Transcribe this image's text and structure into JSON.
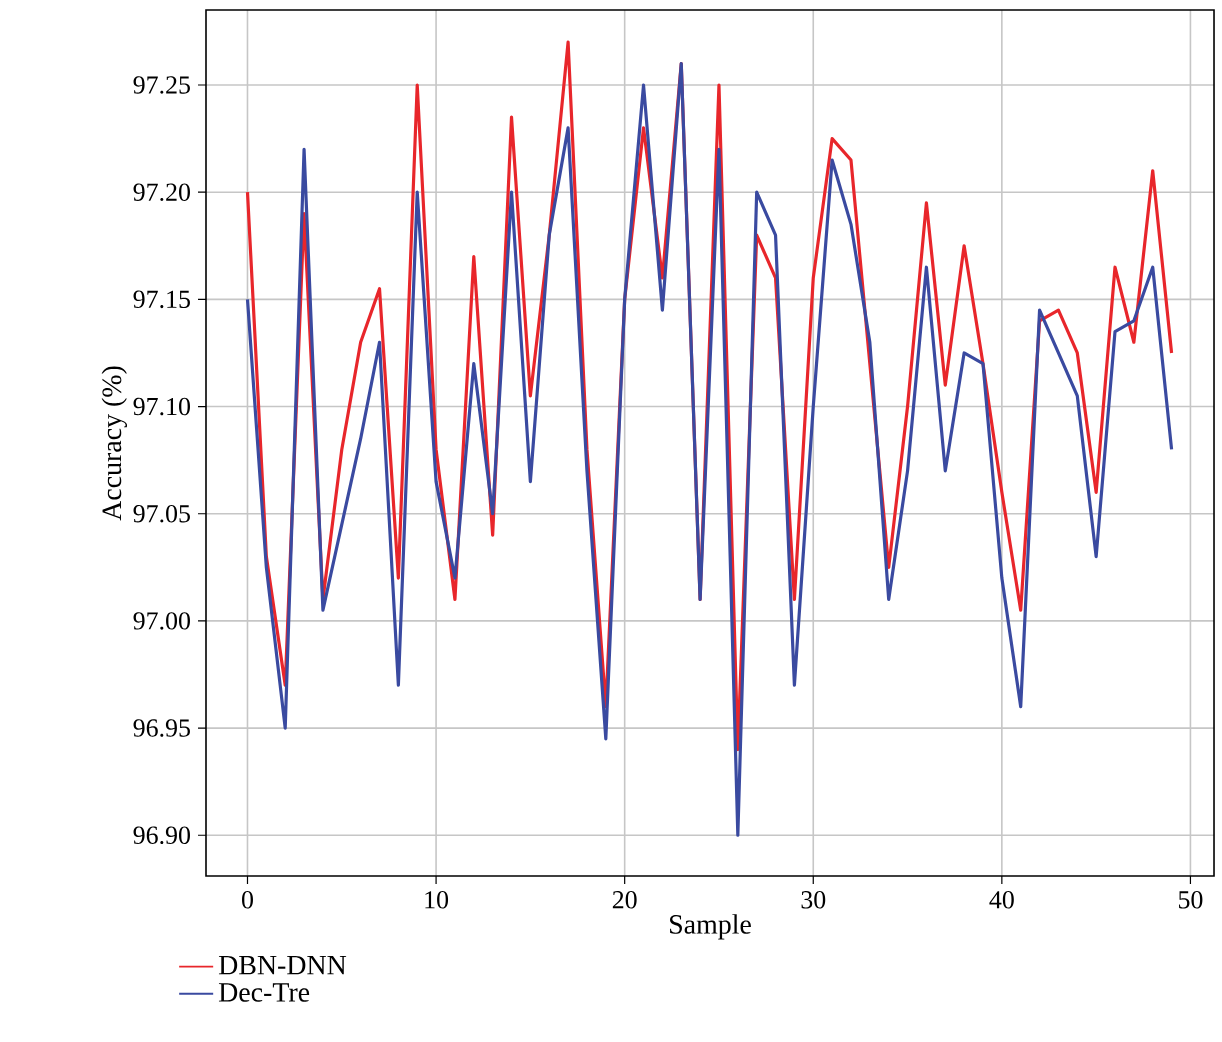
{
  "chart_data": {
    "type": "line",
    "xlabel": "Sample",
    "ylabel": "Accuracy (%)",
    "x": [
      0,
      1,
      2,
      3,
      4,
      5,
      6,
      7,
      8,
      9,
      10,
      11,
      12,
      13,
      14,
      15,
      16,
      17,
      18,
      19,
      20,
      21,
      22,
      23,
      24,
      25,
      26,
      27,
      28,
      29,
      30,
      31,
      32,
      33,
      34,
      35,
      36,
      37,
      38,
      39,
      40,
      41,
      42,
      43,
      44,
      45,
      46,
      47,
      48,
      49
    ],
    "series": [
      {
        "name": "DBN-DNN",
        "color": "#e8262b",
        "values": [
          97.2,
          97.03,
          96.97,
          97.19,
          97.01,
          97.08,
          97.13,
          97.155,
          97.02,
          97.25,
          97.08,
          97.01,
          97.17,
          97.04,
          97.235,
          97.105,
          97.18,
          97.27,
          97.08,
          96.96,
          97.15,
          97.23,
          97.16,
          97.26,
          97.01,
          97.25,
          96.94,
          97.18,
          97.16,
          97.01,
          97.16,
          97.225,
          97.215,
          97.12,
          97.025,
          97.1,
          97.195,
          97.11,
          97.175,
          97.12,
          97.06,
          97.005,
          97.14,
          97.145,
          97.125,
          97.06,
          97.165,
          97.13,
          97.21,
          97.125
        ]
      },
      {
        "name": "Dec-Tre",
        "color": "#3a4aa0",
        "values": [
          97.15,
          97.025,
          96.95,
          97.22,
          97.005,
          97.045,
          97.085,
          97.13,
          96.97,
          97.2,
          97.065,
          97.02,
          97.12,
          97.05,
          97.2,
          97.065,
          97.18,
          97.23,
          97.07,
          96.945,
          97.15,
          97.25,
          97.145,
          97.26,
          97.01,
          97.22,
          96.9,
          97.2,
          97.18,
          96.97,
          97.1,
          97.215,
          97.185,
          97.13,
          97.01,
          97.07,
          97.165,
          97.07,
          97.125,
          97.12,
          97.02,
          96.96,
          97.145,
          97.125,
          97.105,
          97.03,
          97.135,
          97.14,
          97.165,
          97.08
        ]
      }
    ],
    "xlim": [
      -2.2,
      51.25
    ],
    "ylim": [
      96.881,
      97.285
    ],
    "xticks": [
      0,
      10,
      20,
      30,
      40,
      50
    ],
    "yticks": [
      {
        "value": 96.9,
        "label": "96.90"
      },
      {
        "value": 96.95,
        "label": "96.95"
      },
      {
        "value": 97.0,
        "label": "97.00"
      },
      {
        "value": 97.05,
        "label": "97.05"
      },
      {
        "value": 97.1,
        "label": "97.10"
      },
      {
        "value": 97.15,
        "label": "97.15"
      },
      {
        "value": 97.2,
        "label": "97.20"
      },
      {
        "value": 97.25,
        "label": "97.25"
      }
    ],
    "grid": true,
    "legend": "bottom left",
    "marker": "none",
    "line_style": "solid"
  }
}
